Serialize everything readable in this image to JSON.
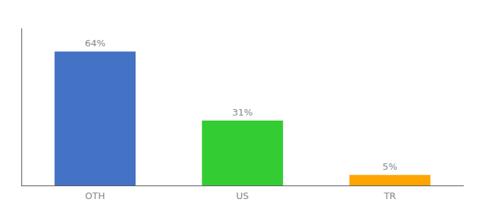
{
  "chart_data": {
    "type": "bar",
    "categories": [
      "OTH",
      "US",
      "TR"
    ],
    "values": [
      64,
      31,
      5
    ],
    "value_labels": [
      "64%",
      "31%",
      "5%"
    ],
    "colors": [
      "#4472C4",
      "#33CC33",
      "#FFA500"
    ],
    "ylim": [
      0,
      75
    ],
    "grid": false,
    "tick_labels": "x",
    "data_labels": true
  }
}
